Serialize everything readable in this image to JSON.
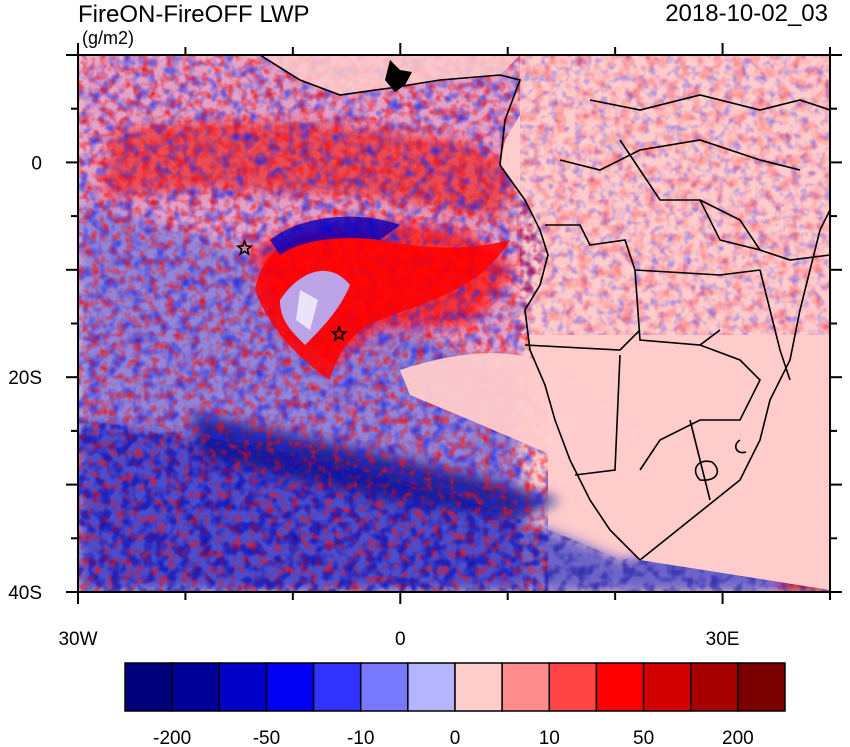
{
  "title": "FireON-FireOFF LWP",
  "units": "(g/m2)",
  "timestamp": "2018-10-02_03",
  "map": {
    "lon_range": [
      -30,
      40
    ],
    "lat_range": [
      -40,
      10
    ],
    "lon_labels": [
      {
        "value": -30,
        "text": "30W"
      },
      {
        "value": 0,
        "text": "0"
      },
      {
        "value": 30,
        "text": "30E"
      }
    ],
    "lat_labels": [
      {
        "value": 0,
        "text": "0"
      },
      {
        "value": -20,
        "text": "20S"
      },
      {
        "value": -40,
        "text": "40S"
      }
    ],
    "markers": [
      {
        "name": "star-marker-1",
        "lon": -14.5,
        "lat": -8.0
      },
      {
        "name": "star-marker-2",
        "lon": -5.7,
        "lat": -16.0
      }
    ]
  },
  "colorbar": {
    "colors": [
      "#00007a",
      "#000098",
      "#0000c8",
      "#0000f5",
      "#3232ff",
      "#7878ff",
      "#b5b5ff",
      "#ffcccc",
      "#ff8c8c",
      "#ff4545",
      "#ff0000",
      "#d40000",
      "#a60000",
      "#7a0000"
    ],
    "labels": [
      {
        "boundary": 1,
        "text": "-200"
      },
      {
        "boundary": 3,
        "text": "-50"
      },
      {
        "boundary": 5,
        "text": "-10"
      },
      {
        "boundary": 7,
        "text": "0"
      },
      {
        "boundary": 9,
        "text": "10"
      },
      {
        "boundary": 11,
        "text": "50"
      },
      {
        "boundary": 13,
        "text": "200"
      }
    ]
  }
}
